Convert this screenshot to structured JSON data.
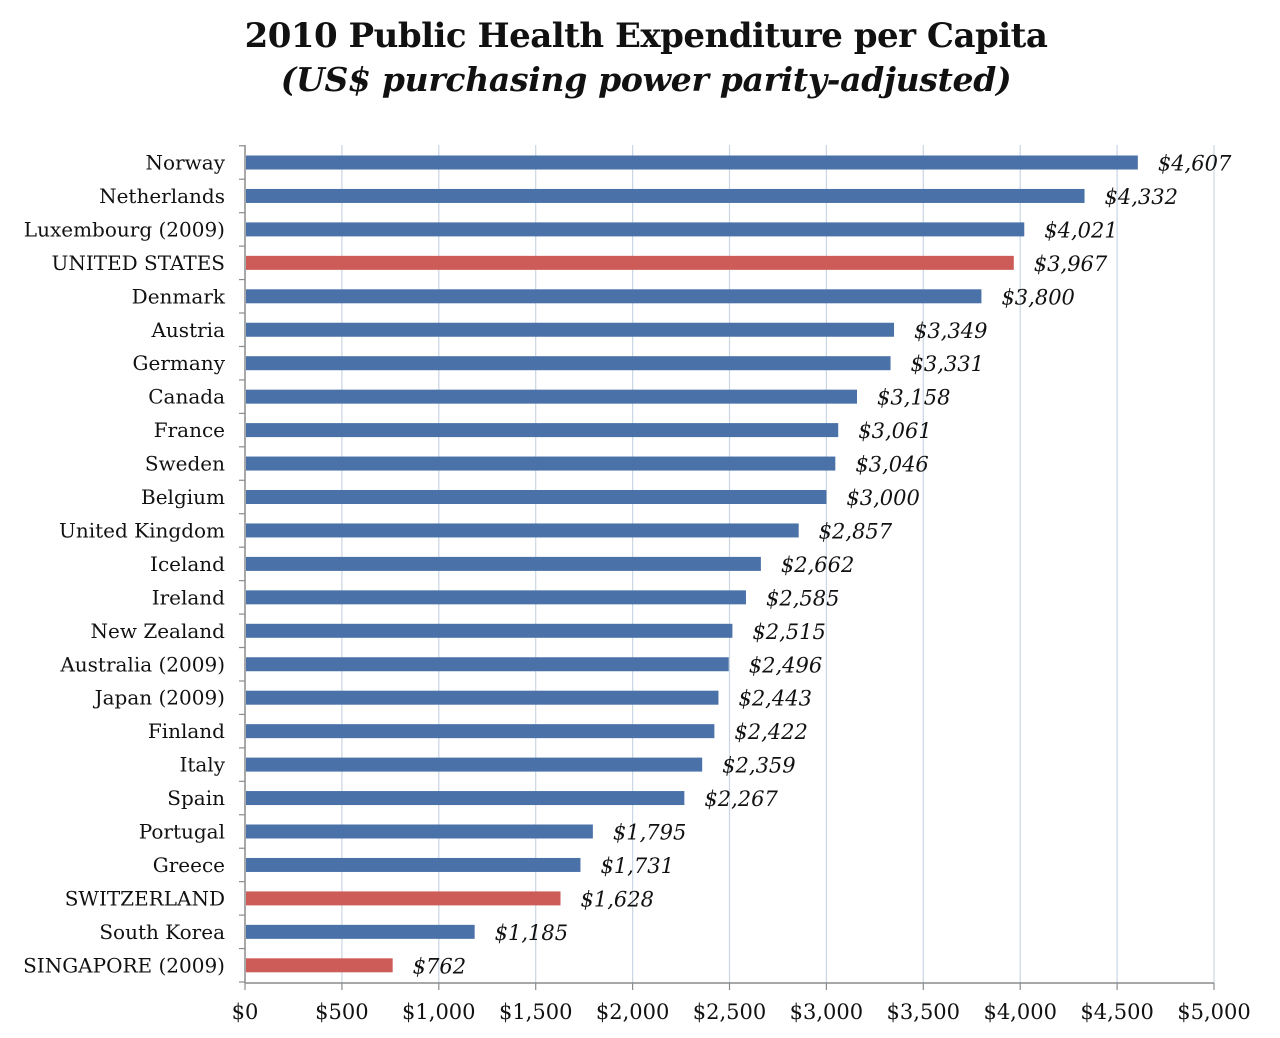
{
  "chart_data": {
    "type": "bar",
    "orientation": "horizontal",
    "title": "2010 Public Health Expenditure per Capita",
    "subtitle": "(US$ purchasing power parity-adjusted)",
    "xlabel": "",
    "ylabel": "",
    "xlim": [
      0,
      5000
    ],
    "grid": true,
    "categories": [
      "Norway",
      "Netherlands",
      "Luxembourg (2009)",
      "UNITED STATES",
      "Denmark",
      "Austria",
      "Germany",
      "Canada",
      "France",
      "Sweden",
      "Belgium",
      "United Kingdom",
      "Iceland",
      "Ireland",
      "New Zealand",
      "Australia (2009)",
      "Japan (2009)",
      "Finland",
      "Italy",
      "Spain",
      "Portugal",
      "Greece",
      "SWITZERLAND",
      "South Korea",
      "SINGAPORE (2009)"
    ],
    "values": [
      4607,
      4332,
      4021,
      3967,
      3800,
      3349,
      3331,
      3158,
      3061,
      3046,
      3000,
      2857,
      2662,
      2585,
      2515,
      2496,
      2443,
      2422,
      2359,
      2267,
      1795,
      1731,
      1628,
      1185,
      762
    ],
    "value_labels": [
      "$4,607",
      "$4,332",
      "$4,021",
      "$3,967",
      "$3,800",
      "$3,349",
      "$3,331",
      "$3,158",
      "$3,061",
      "$3,046",
      "$3,000",
      "$2,857",
      "$2,662",
      "$2,585",
      "$2,515",
      "$2,496",
      "$2,443",
      "$2,422",
      "$2,359",
      "$2,267",
      "$1,795",
      "$1,731",
      "$1,628",
      "$1,185",
      "$762"
    ],
    "highlighted": [
      "UNITED STATES",
      "SWITZERLAND",
      "SINGAPORE (2009)"
    ],
    "x_ticks": [
      0,
      500,
      1000,
      1500,
      2000,
      2500,
      3000,
      3500,
      4000,
      4500,
      5000
    ],
    "x_tick_labels": [
      "$0",
      "$500",
      "$1,000",
      "$1,500",
      "$2,000",
      "$2,500",
      "$3,000",
      "$3,500",
      "$4,000",
      "$4,500",
      "$5,000"
    ],
    "colors": {
      "default_bar": "#4A72A8",
      "highlight_bar": "#CD5C59",
      "grid": "#C9D6E3",
      "axis": "#8C8C8C"
    }
  }
}
